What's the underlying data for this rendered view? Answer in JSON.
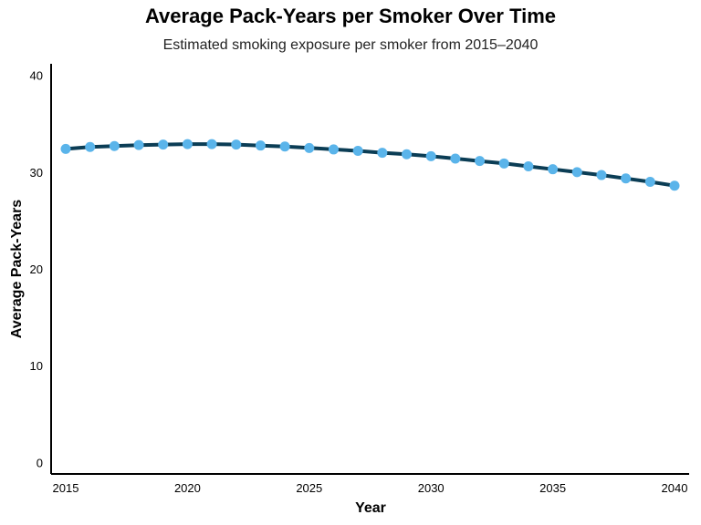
{
  "chart_data": {
    "type": "line",
    "title": "Average Pack-Years per Smoker Over Time",
    "subtitle": "Estimated smoking exposure per smoker from 2015–2040",
    "xlabel": "Year",
    "ylabel": "Average Pack-Years",
    "xlim": [
      2014.4,
      2040.6
    ],
    "ylim": [
      -1.2,
      41.2
    ],
    "x_ticks": [
      2015,
      2020,
      2025,
      2030,
      2035,
      2040
    ],
    "y_ticks": [
      0,
      10,
      20,
      30,
      40
    ],
    "grid": false,
    "legend": "none",
    "colors": {
      "line": "#0b3d55",
      "marker": "#5ab4ea"
    },
    "series": [
      {
        "x": [
          2015,
          2016,
          2017,
          2018,
          2019,
          2020,
          2021,
          2022,
          2023,
          2024,
          2025,
          2026,
          2027,
          2028,
          2029,
          2030,
          2031,
          2032,
          2033,
          2034,
          2035,
          2036,
          2037,
          2038,
          2039,
          2040
        ],
        "values": [
          32.4,
          32.6,
          32.7,
          32.8,
          32.85,
          32.9,
          32.9,
          32.85,
          32.75,
          32.65,
          32.5,
          32.35,
          32.2,
          32.0,
          31.85,
          31.65,
          31.4,
          31.15,
          30.9,
          30.6,
          30.3,
          30.0,
          29.7,
          29.35,
          29.0,
          28.6
        ]
      }
    ]
  }
}
